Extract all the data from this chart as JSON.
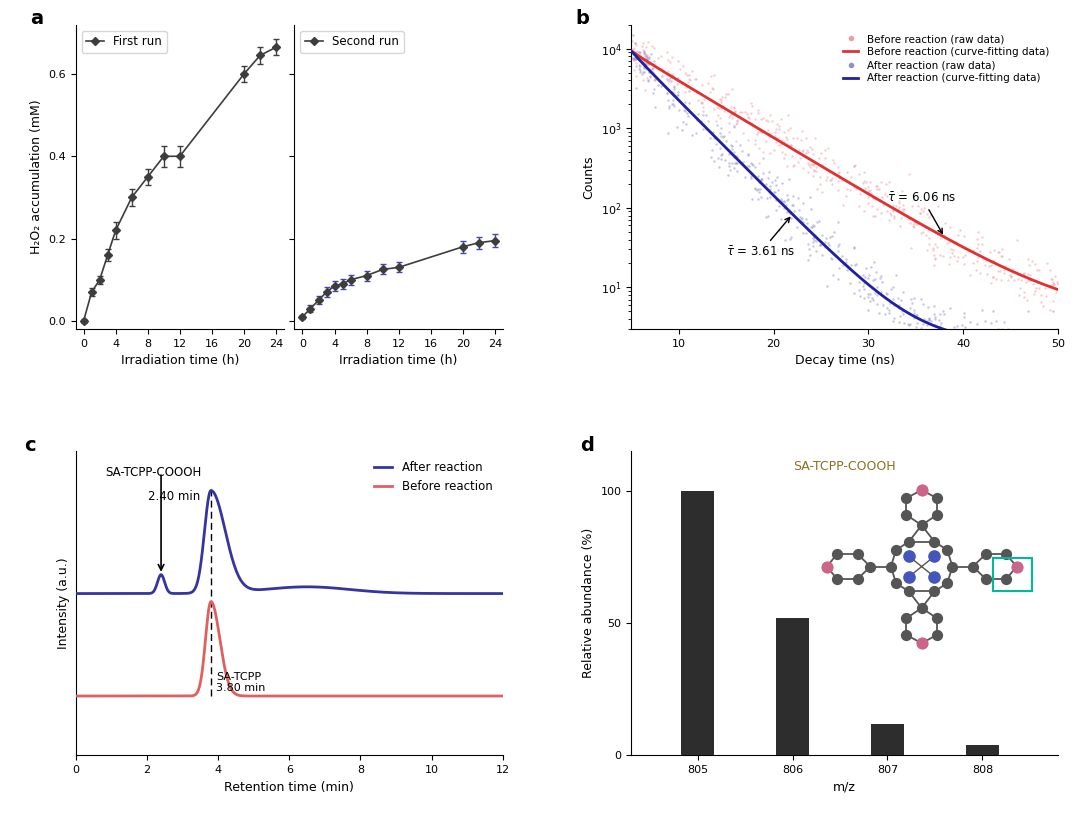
{
  "panel_a": {
    "first_run": {
      "x": [
        0,
        1,
        2,
        3,
        4,
        6,
        8,
        10,
        12,
        20,
        22,
        24
      ],
      "y": [
        0.0,
        0.07,
        0.1,
        0.16,
        0.22,
        0.3,
        0.35,
        0.4,
        0.4,
        0.6,
        0.645,
        0.665
      ],
      "yerr": [
        0.005,
        0.01,
        0.01,
        0.015,
        0.02,
        0.02,
        0.02,
        0.025,
        0.025,
        0.02,
        0.02,
        0.02
      ],
      "label": "First run"
    },
    "second_run": {
      "x": [
        0,
        1,
        2,
        3,
        4,
        5,
        6,
        8,
        10,
        12,
        20,
        22,
        24
      ],
      "y": [
        0.01,
        0.03,
        0.05,
        0.07,
        0.085,
        0.09,
        0.1,
        0.11,
        0.125,
        0.13,
        0.18,
        0.19,
        0.195
      ],
      "yerr": [
        0.005,
        0.008,
        0.01,
        0.012,
        0.012,
        0.012,
        0.012,
        0.012,
        0.012,
        0.012,
        0.015,
        0.015,
        0.015
      ],
      "label": "Second run"
    },
    "ylabel": "H₂O₂ accumulation (mM)",
    "xlabel": "Irradiation time (h)",
    "color": "#3d3d3d",
    "error_color_first": "#3d3d3d",
    "error_color_second": "#4444bb"
  },
  "panel_b": {
    "tau_before": 6.06,
    "tau_after": 3.61,
    "xlabel": "Decay time (ns)",
    "ylabel": "Counts",
    "color_before_raw": "#e8a0a8",
    "color_before_fit": "#e03030",
    "color_after_raw": "#9090c8",
    "color_after_fit": "#2020a0",
    "xmin": 5,
    "xmax": 50,
    "ymin": 3,
    "ymax": 20000
  },
  "panel_c": {
    "xlabel": "Retention time (min)",
    "ylabel": "Intensity (a.u.)",
    "color_after": "#3535a0",
    "color_before": "#e06060",
    "label_after": "After reaction",
    "label_before": "Before reaction",
    "peak_x": 3.8,
    "small_peak_x": 2.4,
    "xmin": 0,
    "xmax": 12
  },
  "panel_d": {
    "xlabel": "m/z",
    "ylabel": "Relative abundance (%)",
    "title": "SA-TCPP-COOOH",
    "mz_values": [
      805,
      806,
      807,
      808
    ],
    "abundances": [
      100,
      52,
      12,
      4
    ],
    "bar_color": "#2d2d2d",
    "title_color": "#8B7020"
  }
}
